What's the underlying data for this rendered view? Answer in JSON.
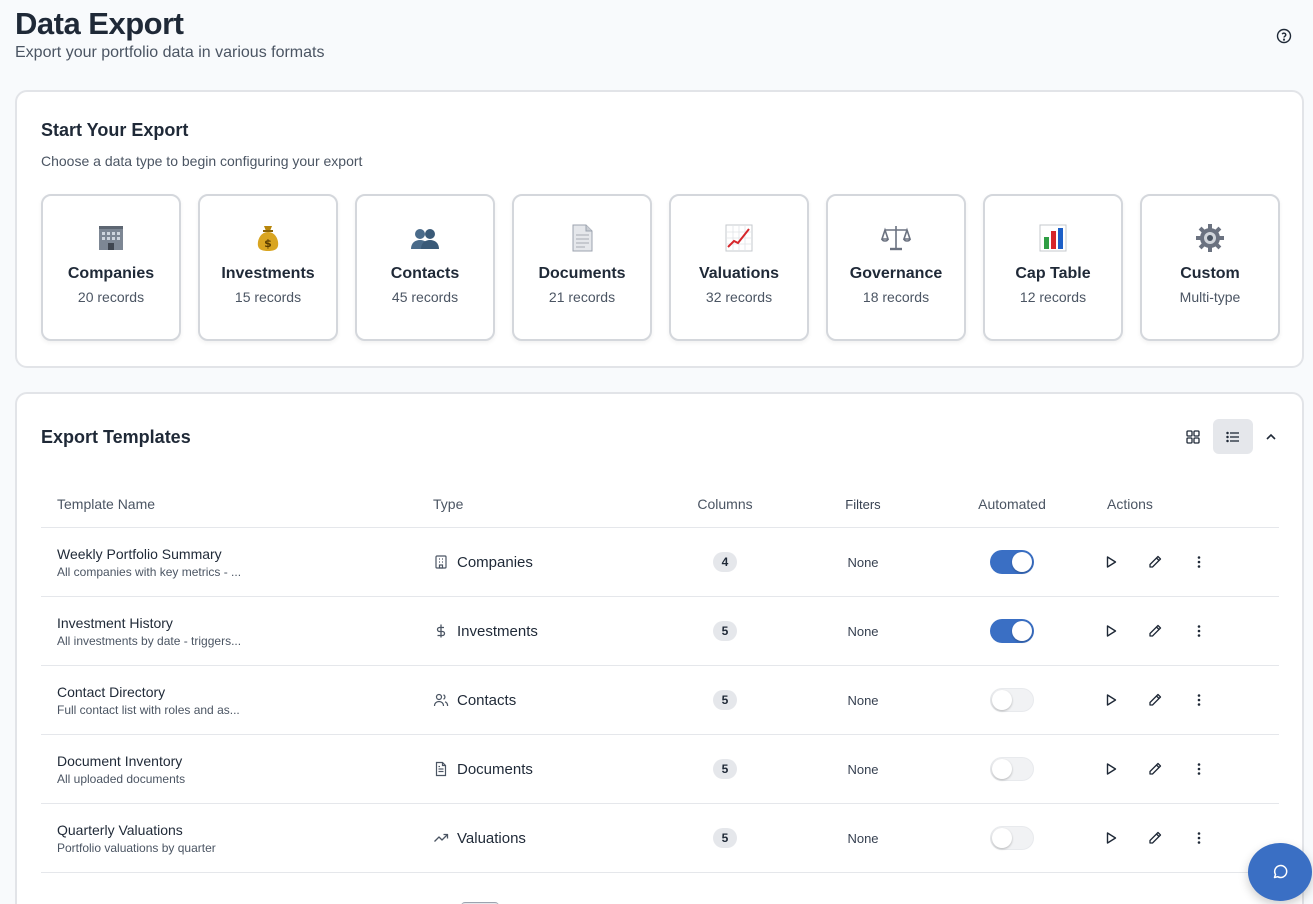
{
  "header": {
    "title": "Data Export",
    "subtitle": "Export your portfolio data in various formats"
  },
  "start": {
    "title": "Start Your Export",
    "subtitle": "Choose a data type to begin configuring your export",
    "types": [
      {
        "name": "Companies",
        "count": "20 records",
        "icon": "building-icon"
      },
      {
        "name": "Investments",
        "count": "15 records",
        "icon": "money-bag-icon"
      },
      {
        "name": "Contacts",
        "count": "45 records",
        "icon": "people-icon"
      },
      {
        "name": "Documents",
        "count": "21 records",
        "icon": "document-icon"
      },
      {
        "name": "Valuations",
        "count": "32 records",
        "icon": "chart-up-icon"
      },
      {
        "name": "Governance",
        "count": "18 records",
        "icon": "scales-icon"
      },
      {
        "name": "Cap Table",
        "count": "12 records",
        "icon": "bar-chart-icon"
      },
      {
        "name": "Custom",
        "count": "Multi-type",
        "icon": "gear-icon"
      }
    ]
  },
  "templates": {
    "title": "Export Templates",
    "columns": {
      "name": "Template Name",
      "type": "Type",
      "cols": "Columns",
      "filters": "Filters",
      "automated": "Automated",
      "actions": "Actions"
    },
    "rows": [
      {
        "title": "Weekly Portfolio Summary",
        "desc": "All companies with key metrics - ...",
        "type": "Companies",
        "type_icon": "building-outline-icon",
        "columns": "4",
        "filters": "None",
        "automated": true
      },
      {
        "title": "Investment History",
        "desc": "All investments by date - triggers...",
        "type": "Investments",
        "type_icon": "dollar-icon",
        "columns": "5",
        "filters": "None",
        "automated": true
      },
      {
        "title": "Contact Directory",
        "desc": "Full contact list with roles and as...",
        "type": "Contacts",
        "type_icon": "users-icon",
        "columns": "5",
        "filters": "None",
        "automated": false
      },
      {
        "title": "Document Inventory",
        "desc": "All uploaded documents",
        "type": "Documents",
        "type_icon": "file-text-icon",
        "columns": "5",
        "filters": "None",
        "automated": false
      },
      {
        "title": "Quarterly Valuations",
        "desc": "Portfolio valuations by quarter",
        "type": "Valuations",
        "type_icon": "trending-up-icon",
        "columns": "5",
        "filters": "None",
        "automated": false
      }
    ]
  },
  "colors": {
    "accent": "#3a6fc4",
    "toggle_off": "#f1f2f4"
  }
}
